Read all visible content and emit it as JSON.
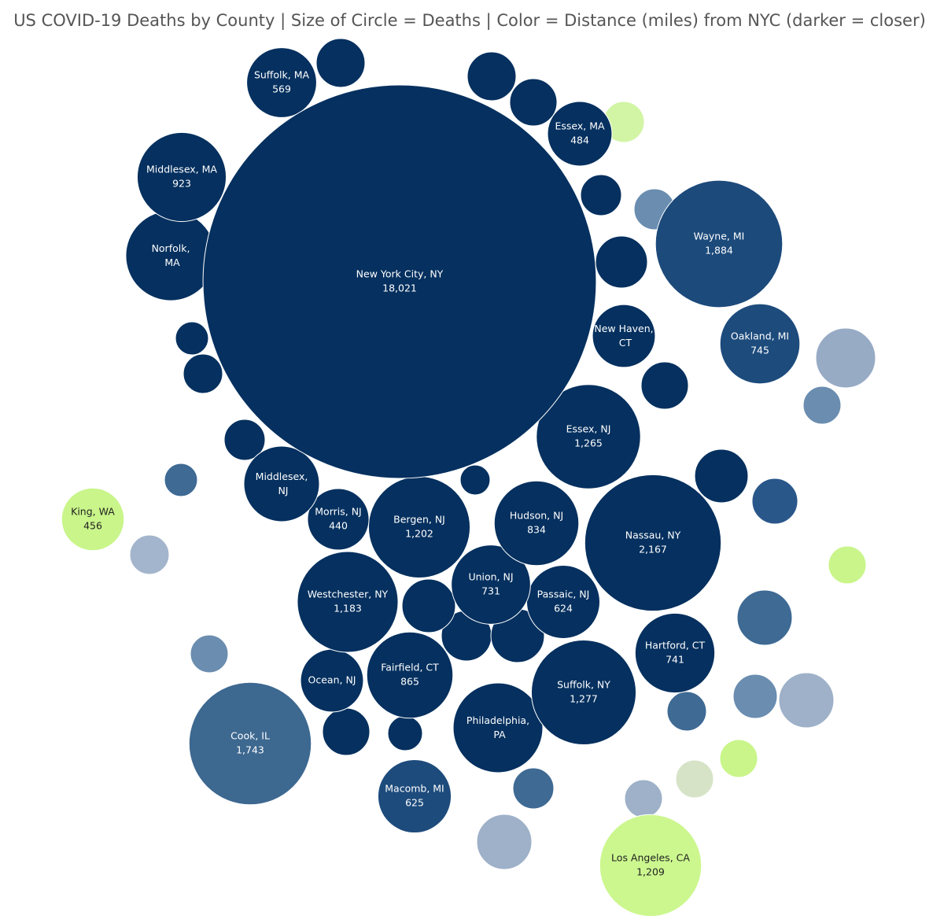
{
  "chart_data": {
    "type": "bubble",
    "title": "US COVID-19 Deaths by County | Size of Circle = Deaths | Color = Distance (miles) from NYC (darker = closer)",
    "categories": [
      "New York City, NY",
      "Suffolk, MA",
      "Middlesex, MA",
      "Norfolk, MA",
      "Essex, MA",
      "Wayne, MI",
      "New Haven, CT",
      "Oakland, MI",
      "Essex, NJ",
      "Middlesex, NJ",
      "Morris, NJ",
      "Bergen, NJ",
      "Hudson, NJ",
      "Nassau, NY",
      "King, WA",
      "Westchester, NY",
      "Union, NJ",
      "Passaic, NJ",
      "Hartford, CT",
      "Ocean, NJ",
      "Fairfield, CT",
      "Suffolk, NY",
      "Philadelphia, PA",
      "Cook, IL",
      "Macomb, MI",
      "Los Angeles, CA",
      null,
      null,
      null,
      null,
      null,
      null,
      null,
      null,
      null,
      null,
      null,
      null,
      null,
      null,
      null,
      null,
      null,
      null,
      null,
      null,
      null,
      null,
      null,
      null,
      null,
      null,
      null,
      null,
      null,
      null,
      null,
      null,
      null,
      null
    ],
    "values": [
      18021,
      569,
      923,
      940,
      484,
      1884,
      460,
      745,
      1265,
      665,
      440,
      1202,
      834,
      2167,
      456,
      1183,
      731,
      624,
      741,
      460,
      865,
      1277,
      937,
      1743,
      625,
      1209,
      277,
      277,
      260,
      195,
      195,
      195,
      314,
      416,
      166,
      333,
      243,
      180,
      353,
      353,
      226,
      180,
      127,
      127,
      195,
      166,
      353,
      166,
      166,
      166,
      333,
      333,
      295,
      260,
      140,
      104,
      180,
      166,
      195,
      260
    ],
    "value_labels": [
      "18,021",
      "569",
      "923",
      null,
      "484",
      "1,884",
      null,
      "745",
      "1,265",
      null,
      "440",
      "1,202",
      "834",
      "2,167",
      "456",
      "1,183",
      "731",
      "624",
      "741",
      null,
      "865",
      "1,277",
      null,
      "1,743",
      "625",
      "1,209",
      null,
      null,
      null,
      null,
      null,
      null,
      null,
      null,
      null,
      null,
      null,
      null,
      null,
      null,
      null,
      null,
      null,
      null,
      null,
      null,
      null,
      null,
      null,
      null,
      null,
      null,
      null,
      null,
      null,
      null,
      null,
      null,
      null,
      null
    ],
    "colors": [
      "#05305f",
      "#05305f",
      "#05305f",
      "#05305f",
      "#05305f",
      "#1c4a7b",
      "#05305f",
      "#1d4b7c",
      "#05305f",
      "#05305f",
      "#05305f",
      "#05305f",
      "#05305f",
      "#05305f",
      "#c9f58a",
      "#05305f",
      "#05305f",
      "#05305f",
      "#05305f",
      "#05305f",
      "#05305f",
      "#05305f",
      "#05305f",
      "#3d6890",
      "#1d4b7c",
      "#ccf78f",
      "#05305f",
      "#05305f",
      "#05305f",
      "#d2f5a5",
      "#05305f",
      "#6a8db0",
      "#05305f",
      "#97abc5",
      "#6a8db0",
      "#05305f",
      "#2a578a",
      "#a3b5cc",
      "#3e6a94",
      "#9eb1c9",
      "#6a8db0",
      "#05305f",
      "#05305f",
      "#3e6a94",
      "#05305f",
      "#6a8db0",
      "#9eb1c9",
      "#d6e3c7",
      "#c9f58a",
      "#c9f58a",
      "#05305f",
      "#05305f",
      "#05305f",
      "#05305f",
      "#05305f",
      "#05305f",
      "#3e6a94",
      "#9eb1c9",
      "#3e6a94",
      "#05305f"
    ]
  }
}
